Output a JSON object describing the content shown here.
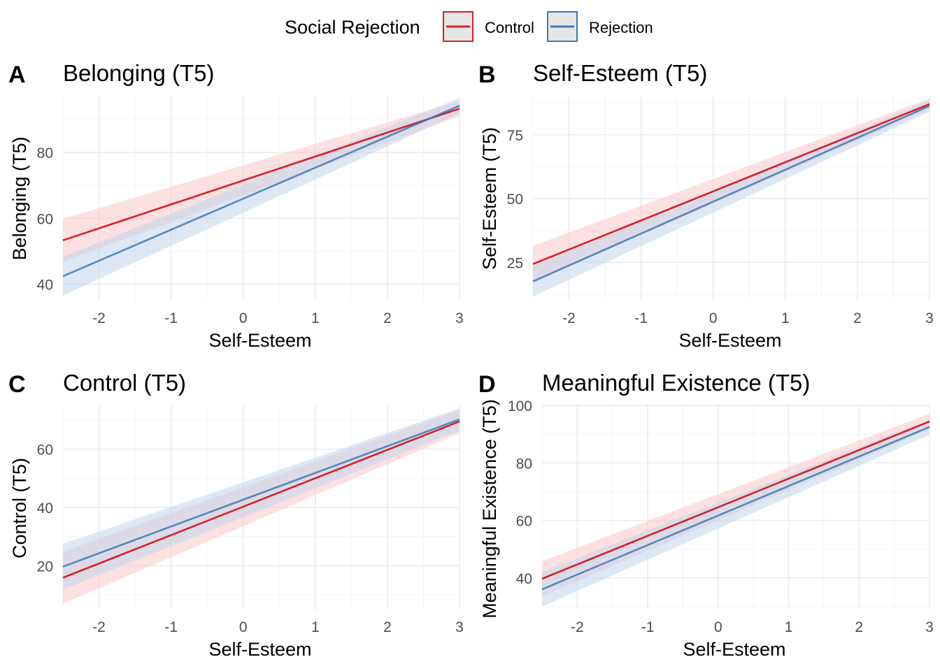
{
  "legend": {
    "title": "Social Rejection",
    "items": [
      {
        "label": "Control",
        "color": "#d62128",
        "fill": "#fbc7c9"
      },
      {
        "label": "Rejection",
        "color": "#3a79b6",
        "fill": "#c2d6ec"
      }
    ]
  },
  "chart_data": [
    {
      "type": "line",
      "tag": "A",
      "title": "Belonging (T5)",
      "xlabel": "Self-Esteem",
      "ylabel": "Belonging (T5)",
      "xlim": [
        -2.5,
        3
      ],
      "ylim": [
        35,
        97
      ],
      "xticks": [
        -2,
        -1,
        0,
        1,
        2,
        3
      ],
      "yticks": [
        40,
        60,
        80
      ],
      "series": [
        {
          "name": "Control",
          "x": [
            -2.5,
            3
          ],
          "y": [
            53.3,
            93.3
          ],
          "lower": [
            46.8,
            91.0
          ],
          "upper": [
            59.8,
            95.6
          ]
        },
        {
          "name": "Rejection",
          "x": [
            -2.5,
            3
          ],
          "y": [
            42.4,
            94.2
          ],
          "lower": [
            36.5,
            91.9
          ],
          "upper": [
            48.3,
            96.5
          ]
        }
      ]
    },
    {
      "type": "line",
      "tag": "B",
      "title": "Self-Esteem (T5)",
      "xlabel": "Self-Esteem",
      "ylabel": "Self-Esteem (T5)",
      "xlim": [
        -2.5,
        3
      ],
      "ylim": [
        10,
        90
      ],
      "xticks": [
        -2,
        -1,
        0,
        1,
        2,
        3
      ],
      "yticks": [
        25,
        50,
        75
      ],
      "series": [
        {
          "name": "Control",
          "x": [
            -2.5,
            3
          ],
          "y": [
            24.3,
            87.0
          ],
          "lower": [
            17.2,
            84.8
          ],
          "upper": [
            31.4,
            89.2
          ]
        },
        {
          "name": "Rejection",
          "x": [
            -2.5,
            3
          ],
          "y": [
            17.5,
            86.3
          ],
          "lower": [
            11.6,
            84.0
          ],
          "upper": [
            23.4,
            88.6
          ]
        }
      ]
    },
    {
      "type": "line",
      "tag": "C",
      "title": "Control (T5)",
      "xlabel": "Self-Esteem",
      "ylabel": "Control (T5)",
      "xlim": [
        -2.5,
        3
      ],
      "ylim": [
        5,
        75
      ],
      "xticks": [
        -2,
        -1,
        0,
        1,
        2,
        3
      ],
      "yticks": [
        20,
        40,
        60
      ],
      "series": [
        {
          "name": "Control",
          "x": [
            -2.5,
            3
          ],
          "y": [
            15.9,
            69.5
          ],
          "lower": [
            7.0,
            65.5
          ],
          "upper": [
            24.8,
            73.5
          ]
        },
        {
          "name": "Rejection",
          "x": [
            -2.5,
            3
          ],
          "y": [
            19.7,
            70.2
          ],
          "lower": [
            11.9,
            66.4
          ],
          "upper": [
            27.5,
            74.0
          ]
        }
      ]
    },
    {
      "type": "line",
      "tag": "D",
      "title": "Meaningful Existence (T5)",
      "xlabel": "Self-Esteem",
      "ylabel": "Meaningful Existence (T5)",
      "xlim": [
        -2.5,
        3
      ],
      "ylim": [
        29,
        100
      ],
      "xticks": [
        -2,
        -1,
        0,
        1,
        2,
        3
      ],
      "yticks": [
        40,
        60,
        80,
        100
      ],
      "series": [
        {
          "name": "Control",
          "x": [
            -2.5,
            3
          ],
          "y": [
            39.7,
            94.4
          ],
          "lower": [
            33.6,
            91.7
          ],
          "upper": [
            45.8,
            97.1
          ]
        },
        {
          "name": "Rejection",
          "x": [
            -2.5,
            3
          ],
          "y": [
            36.0,
            92.5
          ],
          "lower": [
            30.0,
            89.8
          ],
          "upper": [
            42.0,
            95.2
          ]
        }
      ]
    }
  ]
}
